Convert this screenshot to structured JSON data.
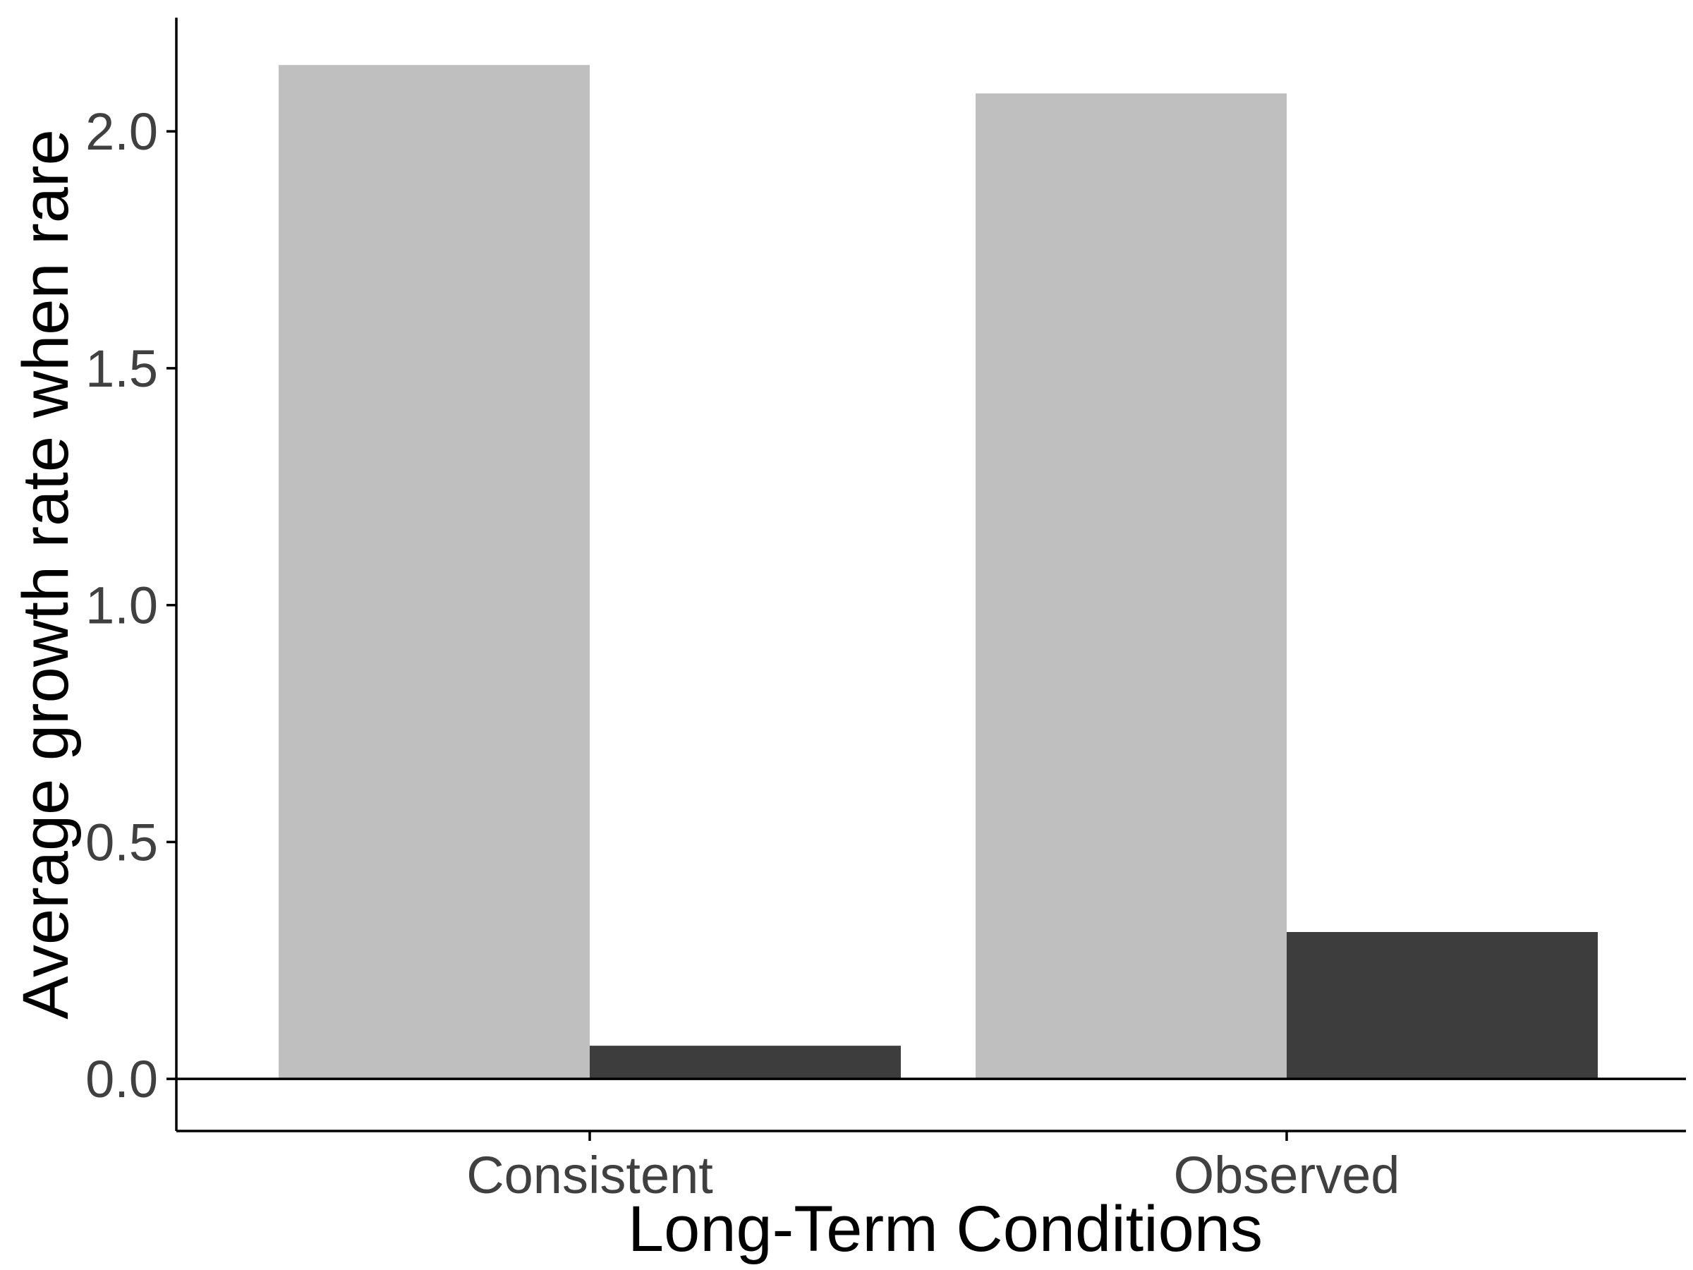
{
  "chart_data": {
    "type": "bar",
    "xlabel": "Long-Term Conditions",
    "ylabel": "Average growth rate when rare",
    "categories": [
      "Consistent",
      "Observed"
    ],
    "series": [
      {
        "values": [
          2.14,
          2.08
        ],
        "color": "#bfbfbf"
      },
      {
        "values": [
          0.07,
          0.31
        ],
        "color": "#3d3d3d"
      }
    ],
    "ylim": [
      -0.11,
      2.24
    ],
    "yticks": [
      0.0,
      0.5,
      1.0,
      1.5,
      2.0
    ],
    "ytick_labels": [
      "0.0",
      "0.5",
      "1.0",
      "1.5",
      "2.0"
    ],
    "reference_line": 0.0,
    "grid": false,
    "legend": "none"
  }
}
